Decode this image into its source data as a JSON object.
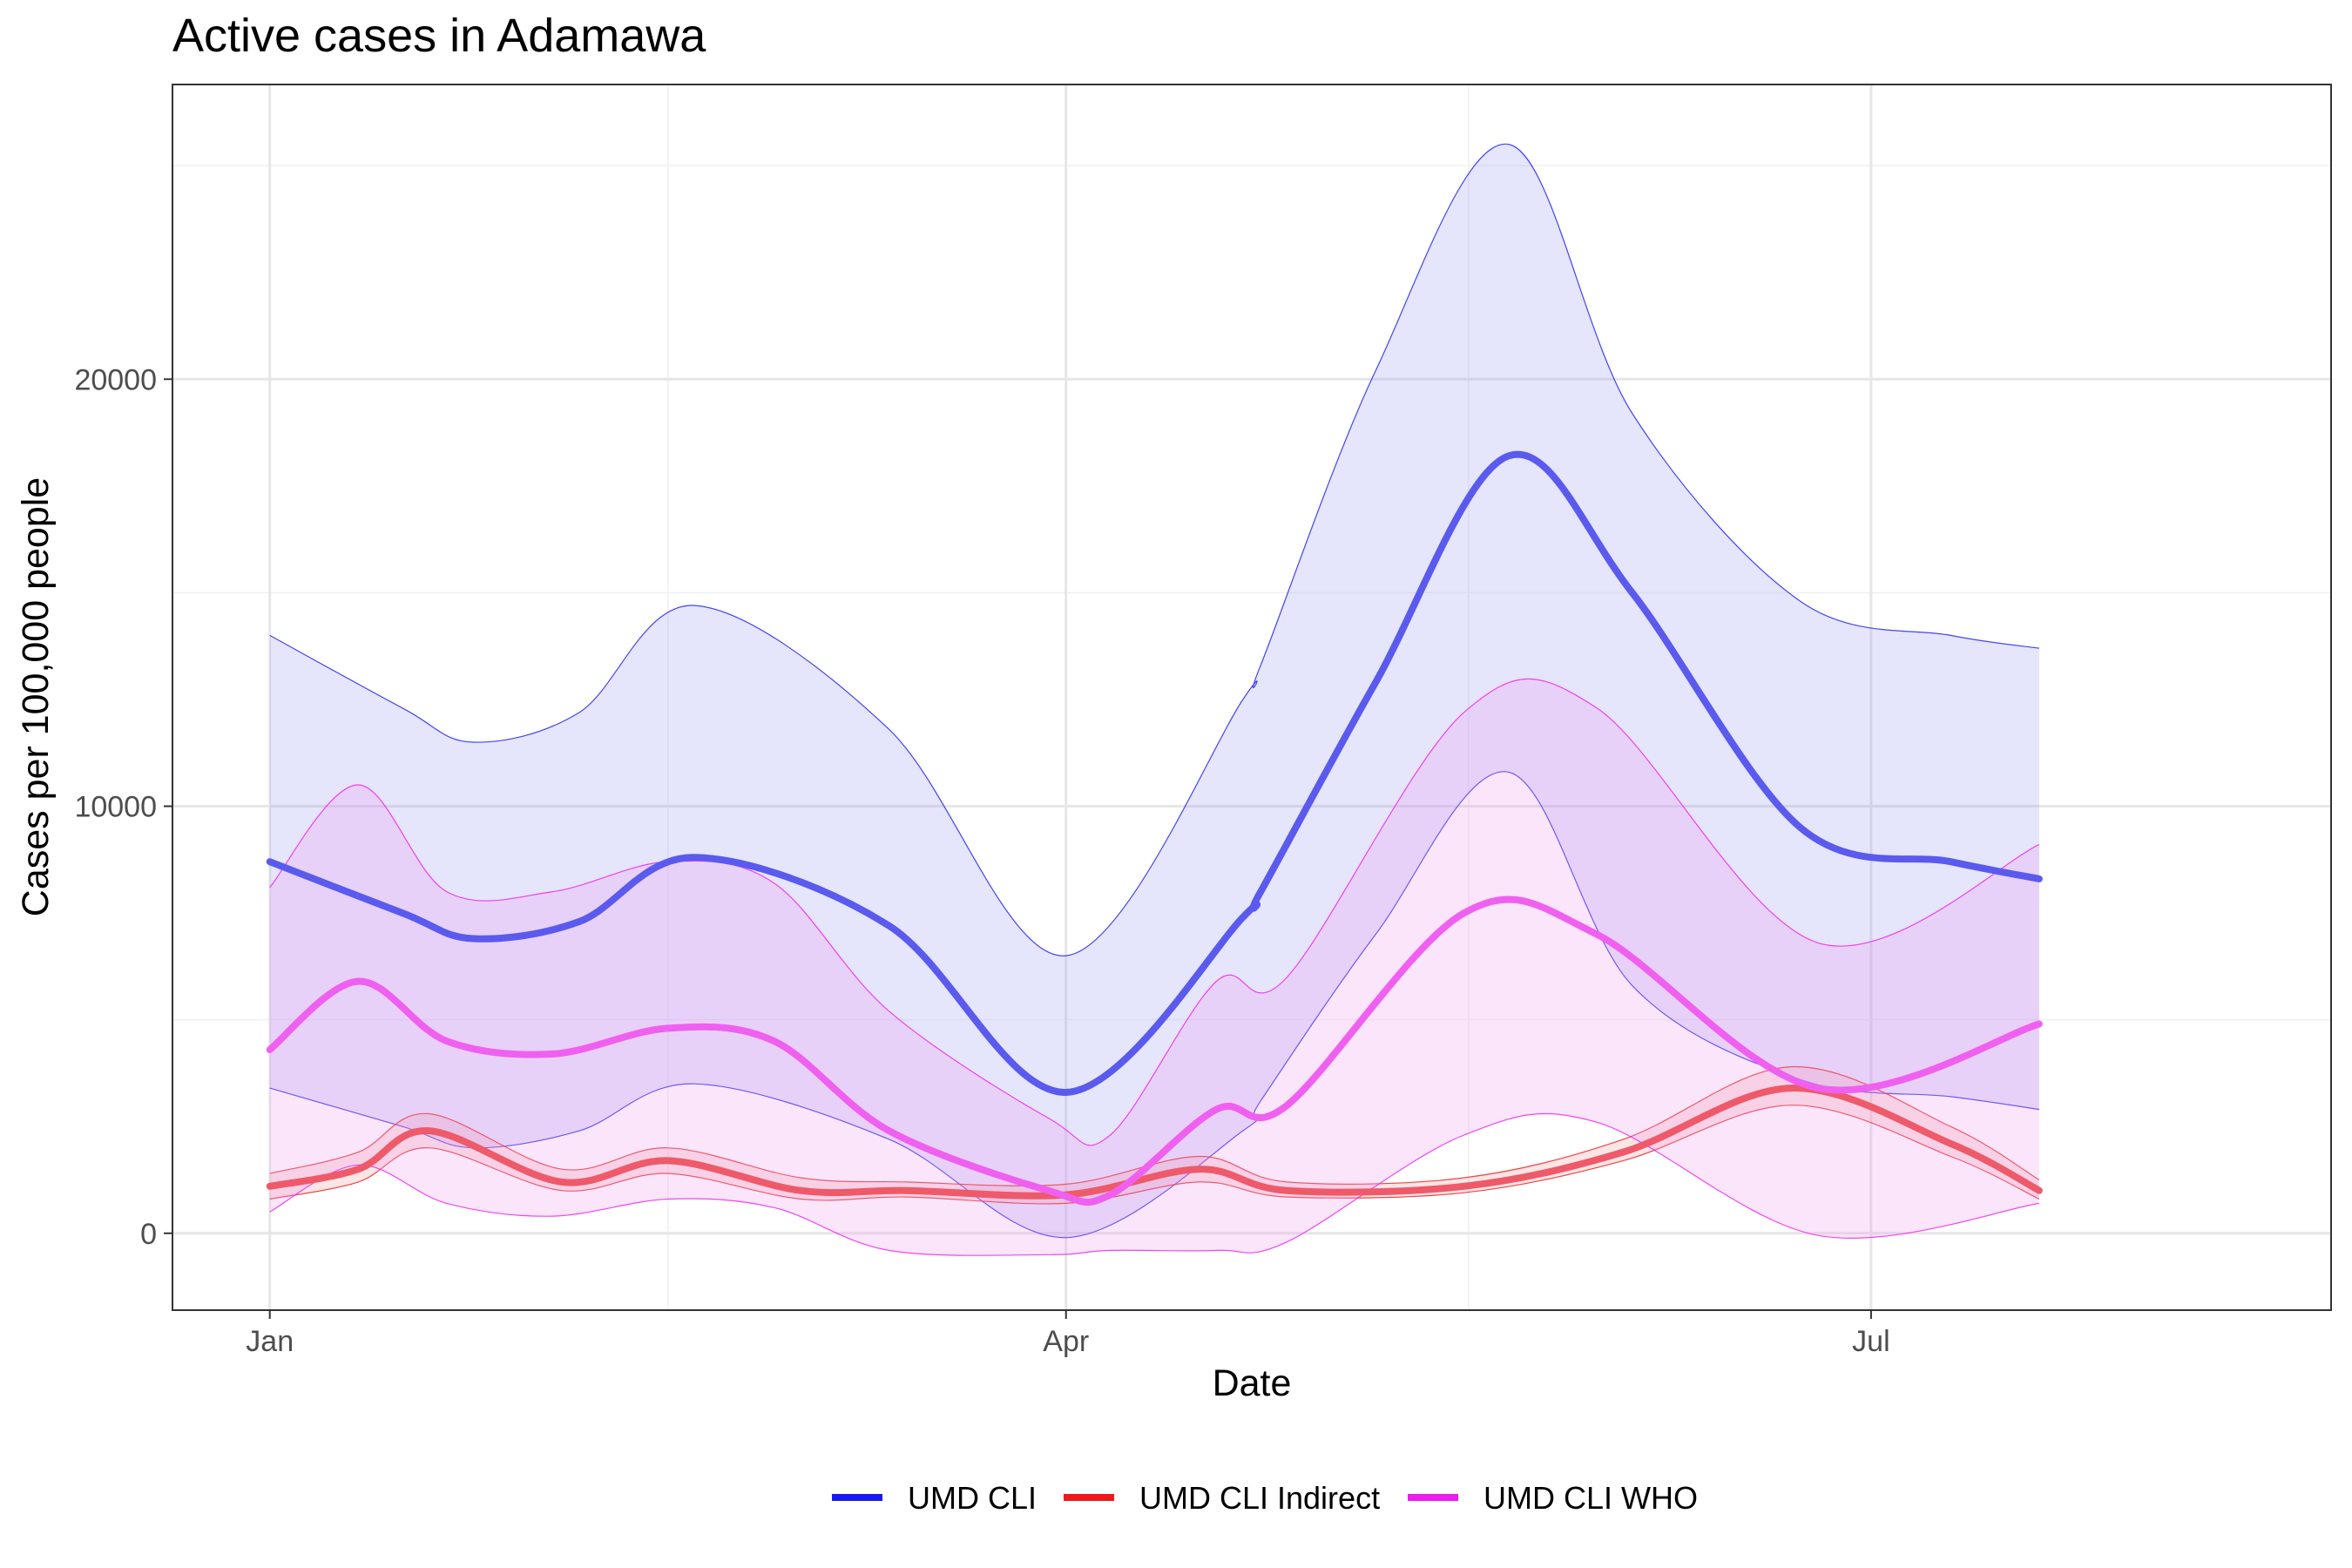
{
  "chart_data": {
    "type": "line",
    "title": "Active cases in Adamawa",
    "xlabel": "Date",
    "ylabel": "Cases per 100,000 people",
    "x_unit": "day of year",
    "xlim": [
      -11,
      233
    ],
    "ylim": [
      -1800,
      26900
    ],
    "x_ticks": [
      {
        "value": 0,
        "label": "Jan"
      },
      {
        "value": 90,
        "label": "Apr"
      },
      {
        "value": 181,
        "label": "Jul"
      }
    ],
    "x_minor_gridlines": [
      45,
      135.5
    ],
    "y_ticks": [
      {
        "value": 0,
        "label": "0"
      },
      {
        "value": 10000,
        "label": "10000"
      },
      {
        "value": 20000,
        "label": "20000"
      }
    ],
    "y_minor_gridlines": [
      5000,
      15000,
      25000
    ],
    "grid": true,
    "legend_position": "bottom",
    "series": [
      {
        "name": "UMD CLI",
        "color": "#1a1aee",
        "line_color": "#5a5aee",
        "band_fill": "#9999ee",
        "x": [
          0,
          15,
          23,
          35,
          48,
          70,
          90,
          110,
          112,
          125,
          140,
          154,
          173,
          190,
          200
        ],
        "value": [
          8700,
          7500,
          6900,
          7300,
          8800,
          7200,
          3300,
          7400,
          8000,
          12900,
          18200,
          15000,
          9500,
          8700,
          8300
        ],
        "lower": [
          3400,
          2500,
          2000,
          2400,
          3500,
          2200,
          -100,
          2400,
          3100,
          7000,
          10800,
          5800,
          3600,
          3200,
          2900
        ],
        "upper": [
          14000,
          12300,
          11500,
          12200,
          14700,
          11800,
          6500,
          12500,
          13300,
          20200,
          25500,
          19200,
          14800,
          14000,
          13700
        ]
      },
      {
        "name": "UMD CLI Indirect",
        "color": "#ee1a1a",
        "line_color": "#ee5a6a",
        "band_fill": "#ee9999",
        "x": [
          0,
          10,
          18,
          33,
          45,
          60,
          72,
          90,
          105,
          115,
          135,
          153,
          172,
          190,
          200
        ],
        "value": [
          1100,
          1500,
          2400,
          1200,
          1700,
          1000,
          1000,
          900,
          1500,
          1000,
          1100,
          1900,
          3400,
          2100,
          1000
        ],
        "lower": [
          800,
          1200,
          2000,
          1000,
          1400,
          800,
          850,
          700,
          1200,
          850,
          950,
          1700,
          3000,
          1800,
          800
        ],
        "upper": [
          1400,
          1900,
          2800,
          1500,
          2000,
          1300,
          1200,
          1150,
          1800,
          1200,
          1300,
          2200,
          3900,
          2500,
          1250
        ]
      },
      {
        "name": "UMD CLI WHO",
        "color": "#ee1aee",
        "line_color": "#f060f0",
        "band_fill": "#ee99ee",
        "x": [
          0,
          10,
          20,
          32,
          45,
          57,
          70,
          88,
          95,
          107,
          115,
          135,
          150,
          175,
          200
        ],
        "value": [
          4300,
          5900,
          4500,
          4200,
          4800,
          4500,
          2400,
          1000,
          900,
          2900,
          3000,
          7500,
          7000,
          3400,
          4900
        ],
        "lower": [
          500,
          1600,
          700,
          400,
          800,
          600,
          -400,
          -500,
          -400,
          -400,
          -200,
          2300,
          2600,
          -50,
          700
        ],
        "upper": [
          8100,
          10500,
          8000,
          8000,
          8700,
          8200,
          5200,
          2700,
          2300,
          5900,
          6000,
          12200,
          12300,
          6800,
          9100
        ]
      }
    ]
  }
}
